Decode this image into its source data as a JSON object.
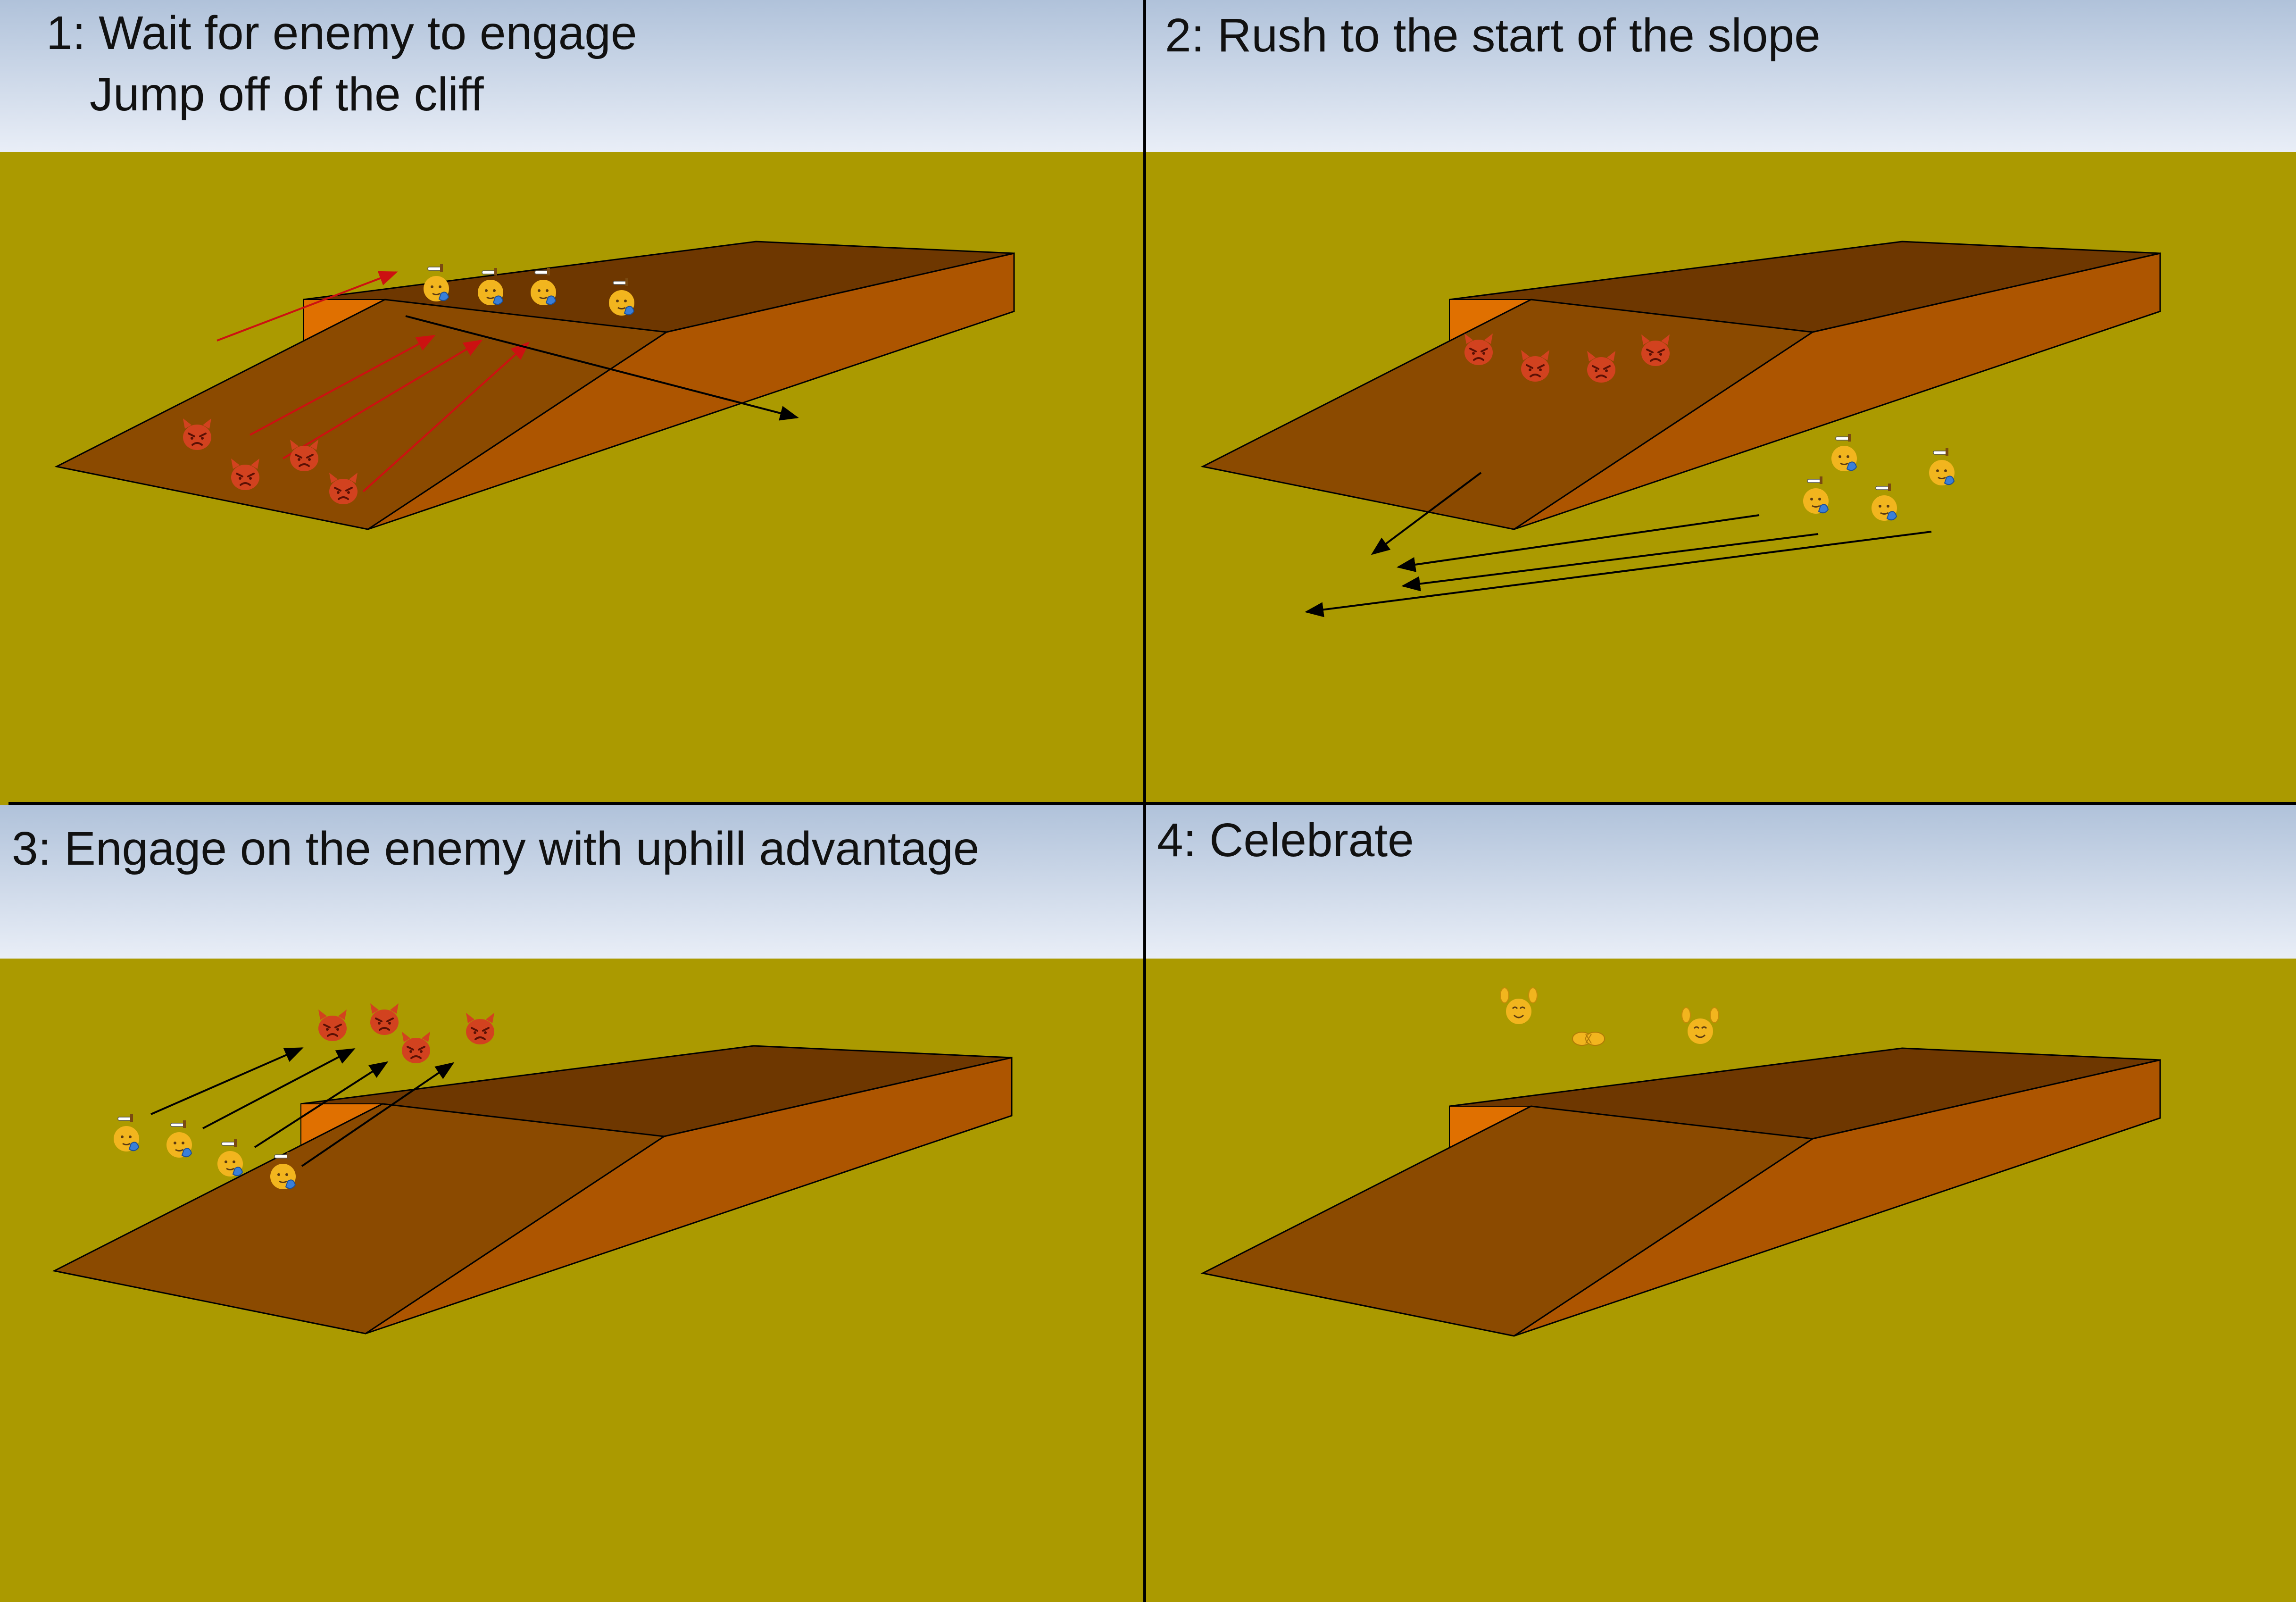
{
  "panels": [
    {
      "id": "p1",
      "caption_line1": "1: Wait for enemy to engage",
      "caption_line2": "Jump off of the cliff"
    },
    {
      "id": "p2",
      "caption_line1": "2: Rush to the start of the slope"
    },
    {
      "id": "p3",
      "caption_line1": "3: Engage on the enemy with uphill advantage"
    },
    {
      "id": "p4",
      "caption_line1": "4: Celebrate"
    }
  ],
  "figures": {
    "devil": {
      "name": "devil-face-icon",
      "color": "#d2421f"
    },
    "ally": {
      "name": "saluting-face-icon",
      "color": "#f2b51e"
    },
    "celebrating": {
      "name": "raised-hands-face-icon",
      "color": "#f2b51e"
    },
    "handshake": {
      "name": "handshake-icon",
      "color": "#f2b51e"
    }
  },
  "colors": {
    "ground": "#ab9a00",
    "slope_top": "#8b4a00",
    "cliff_top": "#6e3700",
    "cliff_side": "#ad5500",
    "cliff_front": "#e07000",
    "enemy_arrow": "#cc1111",
    "ally_arrow": "#000000"
  }
}
